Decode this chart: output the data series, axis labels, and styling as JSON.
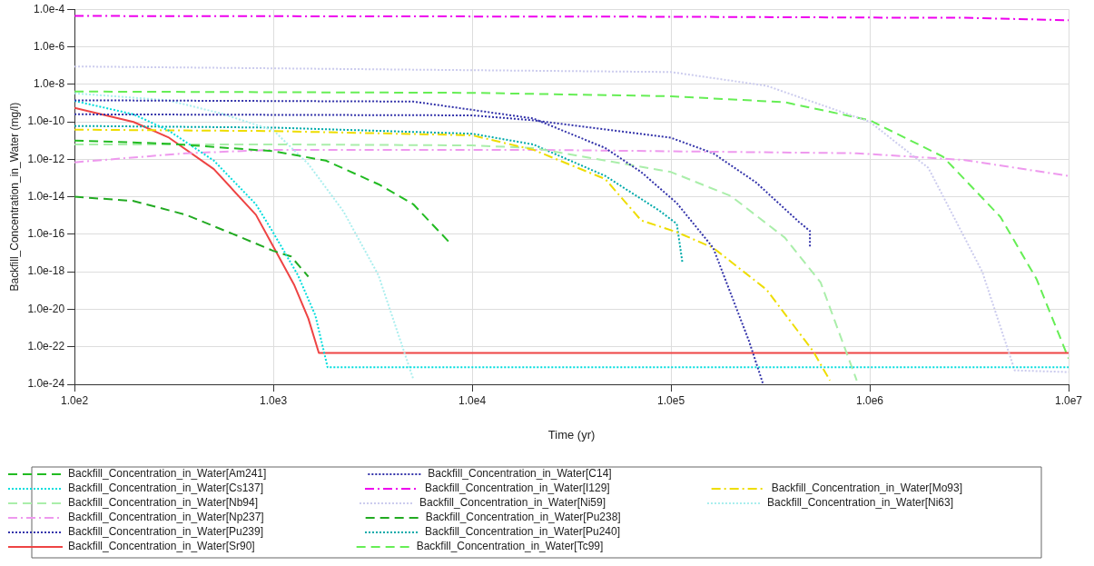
{
  "chart_data": {
    "type": "line",
    "xlabel": "Time (yr)",
    "ylabel": "Backfill_Concentration_in_Water (mg/l)",
    "log": "xy",
    "grid": true,
    "legend": "bottom",
    "marker": "none",
    "xlim": [
      100,
      10000000
    ],
    "ylim": [
      1e-24,
      0.0001
    ],
    "xticks": [
      {
        "value": 100,
        "label": "1.0e2"
      },
      {
        "value": 1000,
        "label": "1.0e3"
      },
      {
        "value": 10000,
        "label": "1.0e4"
      },
      {
        "value": 100000,
        "label": "1.0e5"
      },
      {
        "value": 1000000,
        "label": "1.0e6"
      },
      {
        "value": 10000000,
        "label": "1.0e7"
      }
    ],
    "yticks": [
      {
        "value": 1e-24,
        "label": "1.0e-24"
      },
      {
        "value": 1e-22,
        "label": "1.0e-22"
      },
      {
        "value": 1e-20,
        "label": "1.0e-20"
      },
      {
        "value": 1e-18,
        "label": "1.0e-18"
      },
      {
        "value": 1e-16,
        "label": "1.0e-16"
      },
      {
        "value": 1e-14,
        "label": "1.0e-14"
      },
      {
        "value": 1e-12,
        "label": "1.0e-12"
      },
      {
        "value": 1e-10,
        "label": "1.0e-10"
      },
      {
        "value": 1e-08,
        "label": "1.0e-8"
      },
      {
        "value": 1e-06,
        "label": "1.0e-6"
      },
      {
        "value": 0.0001,
        "label": "1.0e-4"
      }
    ],
    "series": [
      {
        "name": "Backfill_Concentration_in_Water[Am241]",
        "color": "#22bb22",
        "line_style": "dashed",
        "x": [
          100,
          296,
          1000,
          1836,
          3374,
          5057,
          7600
        ],
        "values": [
          1e-11,
          6.8e-12,
          2.7e-12,
          8.5e-13,
          4.7e-14,
          4e-15,
          4.2e-17
        ]
      },
      {
        "name": "Backfill_Concentration_in_Water[C14]",
        "color": "#3333aa",
        "line_style": "dotted",
        "x": [
          100,
          5057,
          20300,
          46700,
          70800,
          107000,
          163000,
          247000,
          291000
        ],
        "values": [
          1.4e-09,
          1.2e-09,
          1.5e-10,
          4e-12,
          2.1e-13,
          4.6e-15,
          1.9e-17,
          2e-22,
          1e-24
        ]
      },
      {
        "name": "Backfill_Concentration_in_Water[Cs137]",
        "color": "#00dddd",
        "line_style": "dotted",
        "x": [
          100,
          198,
          296,
          502,
          817,
          1000,
          1327,
          1626,
          1875,
          10000000
        ],
        "values": [
          1.3e-09,
          2.5e-10,
          3.5e-11,
          8.5e-13,
          4e-15,
          1.2e-16,
          6.8e-19,
          4.8e-21,
          8e-24,
          8e-24
        ]
      },
      {
        "name": "Backfill_Concentration_in_Water[I129]",
        "color": "#ee00ee",
        "line_style": "dashdot",
        "x": [
          100,
          100000,
          1000000,
          3000000,
          10000000
        ],
        "values": [
          4.4e-05,
          4e-05,
          3.6e-05,
          3.5e-05,
          2.6e-05
        ]
      },
      {
        "name": "Backfill_Concentration_in_Water[Mo93]",
        "color": "#eedd00",
        "line_style": "dashdot",
        "x": [
          100,
          1000,
          10000,
          20300,
          46700,
          70800,
          107000,
          163000,
          303000,
          520000,
          630000
        ],
        "values": [
          3.8e-11,
          3.2e-11,
          1.9e-11,
          3.2e-12,
          8.9e-14,
          5.5e-16,
          1.3e-16,
          1.9e-17,
          1.1e-19,
          5.6e-23,
          1.6e-24
        ]
      },
      {
        "name": "Backfill_Concentration_in_Water[Nb94]",
        "color": "#aaeeaa",
        "line_style": "dashed",
        "x": [
          100,
          1000,
          10000,
          20300,
          100000,
          200000,
          374000,
          566000,
          860000
        ],
        "values": [
          6.2e-12,
          6.2e-12,
          5.5e-12,
          4e-12,
          2.1e-13,
          1.1e-14,
          6.6e-17,
          2.7e-19,
          1.6e-24
        ]
      },
      {
        "name": "Backfill_Concentration_in_Water[Ni59]",
        "color": "#ccccee",
        "line_style": "dotted",
        "x": [
          100,
          100000,
          303000,
          1000000,
          1970000,
          3680000,
          5360000,
          10000000
        ],
        "values": [
          8.9e-08,
          4.5e-08,
          8.3e-09,
          1e-10,
          3.5e-13,
          1e-18,
          5.5e-24,
          4.5e-24
        ]
      },
      {
        "name": "Backfill_Concentration_in_Water[Ni63]",
        "color": "#aaeeee",
        "line_style": "dotted",
        "x": [
          100,
          296,
          544,
          1000,
          1500,
          2249,
          3374,
          5057
        ],
        "values": [
          3.3e-09,
          1.4e-09,
          2.8e-10,
          3.5e-11,
          5.6e-13,
          1.7e-15,
          6.8e-19,
          1.9e-24
        ]
      },
      {
        "name": "Backfill_Concentration_in_Water[Np237]",
        "color": "#ee99ee",
        "line_style": "dashdot",
        "x": [
          100,
          363,
          1000,
          20300,
          860000,
          3000000,
          10000000
        ],
        "values": [
          6.9e-13,
          2.1e-12,
          3.2e-12,
          3.2e-12,
          2.1e-12,
          9.1e-13,
          1.3e-13
        ]
      },
      {
        "name": "Backfill_Concentration_in_Water[Pu238]",
        "color": "#22aa22",
        "line_style": "dashed",
        "x": [
          100,
          198,
          363,
          667,
          1000,
          1227,
          1500
        ],
        "values": [
          1e-14,
          6e-15,
          1.1e-15,
          7.9e-17,
          1.3e-17,
          6.6e-18,
          5.5e-19
        ]
      },
      {
        "name": "Backfill_Concentration_in_Water[Pu239]",
        "color": "#3333aa",
        "line_style": "dotted",
        "x": [
          100,
          10000,
          20300,
          100000,
          163000,
          268000,
          441000,
          500000,
          500000
        ],
        "values": [
          2.5e-10,
          2.2e-10,
          1.2e-10,
          1.4e-11,
          2.1e-12,
          5.8e-14,
          4.5e-16,
          1.5e-16,
          1.9e-17
        ]
      },
      {
        "name": "Backfill_Concentration_in_Water[Pu240]",
        "color": "#00aaaa",
        "line_style": "dotted",
        "x": [
          100,
          1000,
          10000,
          20300,
          46700,
          87000,
          107000,
          114000
        ],
        "values": [
          6e-11,
          4.9e-11,
          2.3e-11,
          6.2e-12,
          1.3e-13,
          1.9e-15,
          3.6e-16,
          3.4e-18
        ]
      },
      {
        "name": "Backfill_Concentration_in_Water[Sr90]",
        "color": "#ee4444",
        "line_style": "solid",
        "x": [
          100,
          198,
          296,
          502,
          817,
          1000,
          1276,
          1500,
          1694,
          10000000
        ],
        "values": [
          5.5e-10,
          9.8e-11,
          1.5e-11,
          3e-13,
          1.1e-15,
          2.2e-17,
          1.9e-19,
          3.2e-21,
          4.7e-23,
          4.7e-23
        ]
      },
      {
        "name": "Backfill_Concentration_in_Water[Tc99]",
        "color": "#66ee55",
        "line_style": "dashed",
        "x": [
          100,
          10000,
          100000,
          374000,
          1000000,
          2330000,
          4540000,
          6900000,
          10000000
        ],
        "values": [
          4.1e-09,
          3.5e-09,
          2.3e-09,
          1.1e-09,
          1.2e-10,
          1.4e-12,
          8.5e-16,
          4.1e-19,
          2.4e-23
        ]
      }
    ]
  }
}
